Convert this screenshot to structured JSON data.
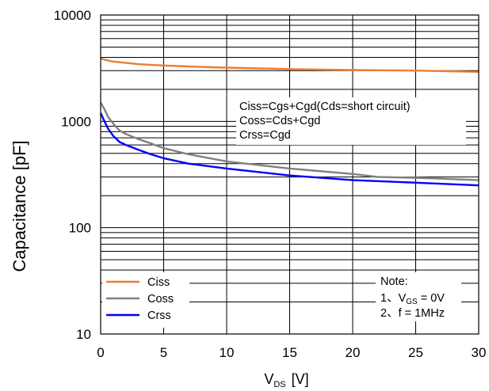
{
  "chart_data": {
    "type": "line",
    "xlabel": "V",
    "xlabel_sub": "DS",
    "xlabel_unit": "[V]",
    "ylabel": "Capacitance   [pF]",
    "xlim": [
      0,
      30
    ],
    "ylim": [
      10,
      10000
    ],
    "yscale": "log",
    "grid": true,
    "x_ticks": [
      "0",
      "5",
      "10",
      "15",
      "20",
      "25",
      "30"
    ],
    "y_ticks": [
      "10",
      "100",
      "1000",
      "10000"
    ],
    "series": [
      {
        "name": "Ciss",
        "color": "#ed7d31",
        "x": [
          0,
          0.5,
          1,
          2,
          3,
          5,
          7,
          10,
          15,
          20,
          25,
          30
        ],
        "y": [
          3900,
          3750,
          3650,
          3550,
          3450,
          3350,
          3280,
          3200,
          3100,
          3040,
          3000,
          2920
        ]
      },
      {
        "name": "Coss",
        "color": "#808080",
        "x": [
          0,
          0.3,
          0.6,
          1,
          1.5,
          2,
          3,
          4,
          5,
          7,
          10,
          15,
          20,
          22,
          25,
          30
        ],
        "y": [
          1500,
          1300,
          1100,
          950,
          820,
          760,
          680,
          620,
          560,
          490,
          420,
          360,
          320,
          300,
          295,
          280
        ]
      },
      {
        "name": "Crss",
        "color": "#0000ff",
        "x": [
          0,
          0.3,
          0.6,
          1,
          1.5,
          2,
          3,
          4,
          5,
          7,
          10,
          15,
          20,
          25,
          30
        ],
        "y": [
          1200,
          1000,
          850,
          730,
          640,
          600,
          540,
          490,
          450,
          400,
          360,
          310,
          280,
          265,
          250
        ]
      }
    ],
    "annotations": [
      "Ciss=Cgs+Cgd(Cds=short circuit)",
      "Coss=Cds+Cgd",
      "Crss=Cgd"
    ],
    "note": {
      "title": "Note:",
      "line1_prefix": "1、V",
      "line1_sub": "GS",
      "line1_suffix": " = 0V",
      "line2": "2、f = 1MHz"
    },
    "legend_position": "bottom-left"
  }
}
